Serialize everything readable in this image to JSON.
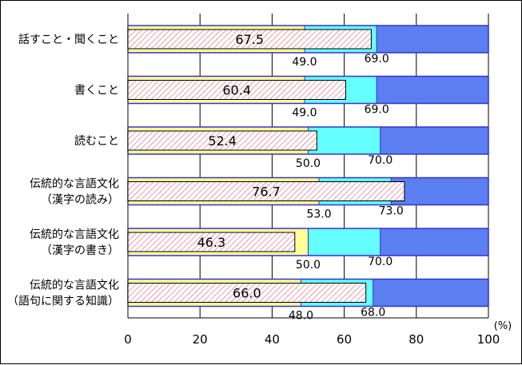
{
  "chart_data": {
    "type": "bar",
    "categories": [
      [
        "話すこと・聞くこと"
      ],
      [
        "書くこと"
      ],
      [
        "読むこと"
      ],
      [
        "伝統的な言語文化",
        "（漢字の読み）"
      ],
      [
        "伝統的な言語文化",
        "（漢字の書き）"
      ],
      [
        "伝統的な言語文化",
        "（語句に関する知識）"
      ]
    ],
    "values": [
      67.5,
      60.4,
      52.4,
      76.7,
      46.3,
      66.0
    ],
    "band_lower": [
      49.0,
      49.0,
      50.0,
      53.0,
      50.0,
      48.0
    ],
    "band_upper": [
      69.0,
      69.0,
      70.0,
      73.0,
      70.0,
      68.0
    ],
    "value_labels": [
      "67.5",
      "60.4",
      "52.4",
      "76.7",
      "46.3",
      "66.0"
    ],
    "lower_labels": [
      "49.0",
      "49.0",
      "50.0",
      "53.0",
      "50.0",
      "48.0"
    ],
    "upper_labels": [
      "69.0",
      "69.0",
      "70.0",
      "73.0",
      "70.0",
      "68.0"
    ],
    "xlim": [
      0,
      100
    ],
    "xticks": [
      0,
      20,
      40,
      60,
      80,
      100
    ],
    "unit": "(%)",
    "grid": true,
    "colors": {
      "band_low": "#FFFF99",
      "band_mid": "#66FFFF",
      "band_high": "#5B7FF0",
      "band_border": "#3333CC",
      "value_bar_fill": "#FFFFFF",
      "value_bar_hatch": "#E05A7A",
      "grid": "#000000"
    }
  }
}
